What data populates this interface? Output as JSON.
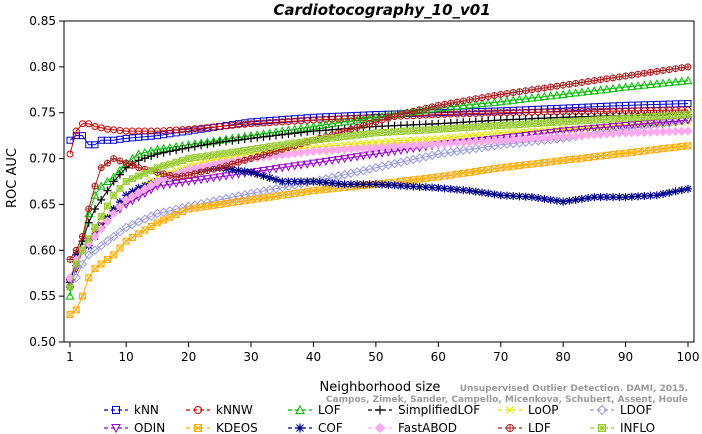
{
  "chart_data": {
    "type": "line",
    "title": "Cardiotocography_10_v01",
    "xlabel": "Neighborhood size",
    "ylabel": "ROC AUC",
    "xlim": [
      1,
      100
    ],
    "ylim": [
      0.5,
      0.85
    ],
    "xticks": [
      "1",
      "10",
      "20",
      "30",
      "40",
      "50",
      "60",
      "70",
      "80",
      "90",
      "100"
    ],
    "yticks": [
      "0.50",
      "0.55",
      "0.60",
      "0.65",
      "0.70",
      "0.75",
      "0.80",
      "0.85"
    ],
    "grid": false,
    "legend_position": "bottom",
    "watermark": [
      "Campos, Zimek, Sander, Campello, Micenkova, Schubert, Assent, Houle",
      "Unsupervised Outlier Detection. DAMI, 2015."
    ],
    "series": [
      {
        "name": "kNN",
        "color": "#0000cc",
        "marker": "square",
        "points": [
          [
            1,
            0.72
          ],
          [
            2,
            0.725
          ],
          [
            3,
            0.725
          ],
          [
            4,
            0.715
          ],
          [
            5,
            0.715
          ],
          [
            6,
            0.72
          ],
          [
            8,
            0.72
          ],
          [
            10,
            0.722
          ],
          [
            15,
            0.725
          ],
          [
            20,
            0.73
          ],
          [
            25,
            0.735
          ],
          [
            30,
            0.74
          ],
          [
            40,
            0.745
          ],
          [
            50,
            0.748
          ],
          [
            60,
            0.75
          ],
          [
            70,
            0.752
          ],
          [
            80,
            0.755
          ],
          [
            90,
            0.758
          ],
          [
            100,
            0.76
          ]
        ]
      },
      {
        "name": "kNNW",
        "color": "#cc0000",
        "marker": "circle",
        "points": [
          [
            1,
            0.705
          ],
          [
            2,
            0.73
          ],
          [
            3,
            0.738
          ],
          [
            4,
            0.738
          ],
          [
            5,
            0.735
          ],
          [
            7,
            0.732
          ],
          [
            10,
            0.73
          ],
          [
            15,
            0.73
          ],
          [
            20,
            0.732
          ],
          [
            25,
            0.735
          ],
          [
            30,
            0.738
          ],
          [
            40,
            0.742
          ],
          [
            50,
            0.745
          ],
          [
            60,
            0.748
          ],
          [
            70,
            0.75
          ],
          [
            80,
            0.751
          ],
          [
            90,
            0.752
          ],
          [
            100,
            0.753
          ]
        ]
      },
      {
        "name": "LOF",
        "color": "#00bb00",
        "marker": "triangle-up",
        "points": [
          [
            1,
            0.55
          ],
          [
            2,
            0.59
          ],
          [
            3,
            0.61
          ],
          [
            4,
            0.64
          ],
          [
            5,
            0.66
          ],
          [
            6,
            0.67
          ],
          [
            8,
            0.68
          ],
          [
            10,
            0.695
          ],
          [
            12,
            0.705
          ],
          [
            15,
            0.71
          ],
          [
            20,
            0.715
          ],
          [
            25,
            0.72
          ],
          [
            30,
            0.725
          ],
          [
            40,
            0.735
          ],
          [
            50,
            0.745
          ],
          [
            60,
            0.755
          ],
          [
            70,
            0.762
          ],
          [
            80,
            0.77
          ],
          [
            90,
            0.778
          ],
          [
            100,
            0.785
          ]
        ]
      },
      {
        "name": "SimplifiedLOF",
        "color": "#000000",
        "marker": "plus",
        "points": [
          [
            1,
            0.565
          ],
          [
            2,
            0.595
          ],
          [
            3,
            0.61
          ],
          [
            4,
            0.63
          ],
          [
            5,
            0.645
          ],
          [
            6,
            0.655
          ],
          [
            8,
            0.675
          ],
          [
            10,
            0.69
          ],
          [
            12,
            0.698
          ],
          [
            15,
            0.705
          ],
          [
            20,
            0.712
          ],
          [
            25,
            0.718
          ],
          [
            30,
            0.722
          ],
          [
            40,
            0.73
          ],
          [
            50,
            0.735
          ],
          [
            60,
            0.738
          ],
          [
            70,
            0.742
          ],
          [
            80,
            0.745
          ],
          [
            90,
            0.747
          ],
          [
            100,
            0.748
          ]
        ]
      },
      {
        "name": "LoOP",
        "color": "#e8e800",
        "marker": "x",
        "points": [
          [
            1,
            0.56
          ],
          [
            2,
            0.58
          ],
          [
            3,
            0.6
          ],
          [
            4,
            0.61
          ],
          [
            5,
            0.62
          ],
          [
            8,
            0.645
          ],
          [
            10,
            0.66
          ],
          [
            15,
            0.68
          ],
          [
            20,
            0.692
          ],
          [
            25,
            0.7
          ],
          [
            30,
            0.705
          ],
          [
            40,
            0.712
          ],
          [
            50,
            0.718
          ],
          [
            60,
            0.722
          ],
          [
            70,
            0.728
          ],
          [
            80,
            0.732
          ],
          [
            90,
            0.736
          ],
          [
            100,
            0.74
          ]
        ]
      },
      {
        "name": "LDOF",
        "color": "#9999dd",
        "marker": "diamond",
        "points": [
          [
            1,
            0.56
          ],
          [
            2,
            0.57
          ],
          [
            3,
            0.585
          ],
          [
            4,
            0.595
          ],
          [
            5,
            0.6
          ],
          [
            8,
            0.615
          ],
          [
            10,
            0.625
          ],
          [
            15,
            0.64
          ],
          [
            20,
            0.648
          ],
          [
            25,
            0.655
          ],
          [
            30,
            0.662
          ],
          [
            40,
            0.675
          ],
          [
            50,
            0.69
          ],
          [
            60,
            0.705
          ],
          [
            70,
            0.715
          ],
          [
            80,
            0.722
          ],
          [
            90,
            0.732
          ],
          [
            100,
            0.742
          ]
        ]
      },
      {
        "name": "ODIN",
        "color": "#9900cc",
        "marker": "triangle-down",
        "points": [
          [
            1,
            0.565
          ],
          [
            2,
            0.58
          ],
          [
            3,
            0.6
          ],
          [
            4,
            0.61
          ],
          [
            5,
            0.62
          ],
          [
            8,
            0.64
          ],
          [
            10,
            0.65
          ],
          [
            15,
            0.67
          ],
          [
            20,
            0.675
          ],
          [
            25,
            0.68
          ],
          [
            30,
            0.685
          ],
          [
            40,
            0.695
          ],
          [
            50,
            0.705
          ],
          [
            60,
            0.715
          ],
          [
            70,
            0.722
          ],
          [
            80,
            0.73
          ],
          [
            90,
            0.736
          ],
          [
            100,
            0.742
          ]
        ]
      },
      {
        "name": "KDEOS",
        "color": "#ffaa00",
        "marker": "square-x",
        "points": [
          [
            1,
            0.53
          ],
          [
            2,
            0.535
          ],
          [
            3,
            0.55
          ],
          [
            4,
            0.57
          ],
          [
            5,
            0.58
          ],
          [
            8,
            0.595
          ],
          [
            10,
            0.61
          ],
          [
            15,
            0.63
          ],
          [
            20,
            0.645
          ],
          [
            25,
            0.65
          ],
          [
            30,
            0.655
          ],
          [
            40,
            0.665
          ],
          [
            50,
            0.672
          ],
          [
            60,
            0.68
          ],
          [
            70,
            0.69
          ],
          [
            80,
            0.698
          ],
          [
            90,
            0.706
          ],
          [
            100,
            0.714
          ]
        ]
      },
      {
        "name": "COF",
        "color": "#000088",
        "marker": "star",
        "points": [
          [
            1,
            0.56
          ],
          [
            2,
            0.595
          ],
          [
            3,
            0.6
          ],
          [
            4,
            0.605
          ],
          [
            5,
            0.615
          ],
          [
            6,
            0.625
          ],
          [
            8,
            0.645
          ],
          [
            10,
            0.66
          ],
          [
            12,
            0.668
          ],
          [
            15,
            0.675
          ],
          [
            18,
            0.682
          ],
          [
            20,
            0.687
          ],
          [
            25,
            0.69
          ],
          [
            30,
            0.685
          ],
          [
            35,
            0.675
          ],
          [
            40,
            0.675
          ],
          [
            45,
            0.672
          ],
          [
            50,
            0.672
          ],
          [
            55,
            0.67
          ],
          [
            60,
            0.668
          ],
          [
            65,
            0.665
          ],
          [
            70,
            0.66
          ],
          [
            75,
            0.658
          ],
          [
            80,
            0.653
          ],
          [
            85,
            0.658
          ],
          [
            90,
            0.658
          ],
          [
            95,
            0.66
          ],
          [
            100,
            0.667
          ]
        ]
      },
      {
        "name": "FastABOD",
        "color": "#ffaaee",
        "marker": "diamond-filled",
        "points": [
          [
            1,
            0.57
          ],
          [
            2,
            0.59
          ],
          [
            3,
            0.6
          ],
          [
            5,
            0.615
          ],
          [
            8,
            0.64
          ],
          [
            10,
            0.655
          ],
          [
            15,
            0.675
          ],
          [
            20,
            0.688
          ],
          [
            25,
            0.695
          ],
          [
            30,
            0.7
          ],
          [
            40,
            0.708
          ],
          [
            50,
            0.712
          ],
          [
            60,
            0.716
          ],
          [
            70,
            0.72
          ],
          [
            80,
            0.724
          ],
          [
            90,
            0.728
          ],
          [
            100,
            0.73
          ]
        ]
      },
      {
        "name": "LDF",
        "color": "#aa2222",
        "marker": "circle-plus",
        "points": [
          [
            1,
            0.59
          ],
          [
            2,
            0.6
          ],
          [
            3,
            0.615
          ],
          [
            4,
            0.645
          ],
          [
            5,
            0.67
          ],
          [
            6,
            0.69
          ],
          [
            8,
            0.7
          ],
          [
            10,
            0.695
          ],
          [
            12,
            0.69
          ],
          [
            15,
            0.685
          ],
          [
            18,
            0.68
          ],
          [
            20,
            0.682
          ],
          [
            25,
            0.69
          ],
          [
            30,
            0.7
          ],
          [
            35,
            0.71
          ],
          [
            40,
            0.72
          ],
          [
            45,
            0.73
          ],
          [
            50,
            0.74
          ],
          [
            55,
            0.75
          ],
          [
            60,
            0.758
          ],
          [
            70,
            0.77
          ],
          [
            80,
            0.78
          ],
          [
            90,
            0.79
          ],
          [
            100,
            0.8
          ]
        ]
      },
      {
        "name": "INFLO",
        "color": "#99cc33",
        "marker": "square-star",
        "points": [
          [
            1,
            0.56
          ],
          [
            2,
            0.585
          ],
          [
            3,
            0.6
          ],
          [
            5,
            0.625
          ],
          [
            8,
            0.66
          ],
          [
            10,
            0.675
          ],
          [
            15,
            0.69
          ],
          [
            20,
            0.7
          ],
          [
            25,
            0.705
          ],
          [
            30,
            0.71
          ],
          [
            40,
            0.72
          ],
          [
            50,
            0.728
          ],
          [
            60,
            0.732
          ],
          [
            70,
            0.736
          ],
          [
            80,
            0.74
          ],
          [
            90,
            0.744
          ],
          [
            100,
            0.748
          ]
        ]
      }
    ]
  }
}
